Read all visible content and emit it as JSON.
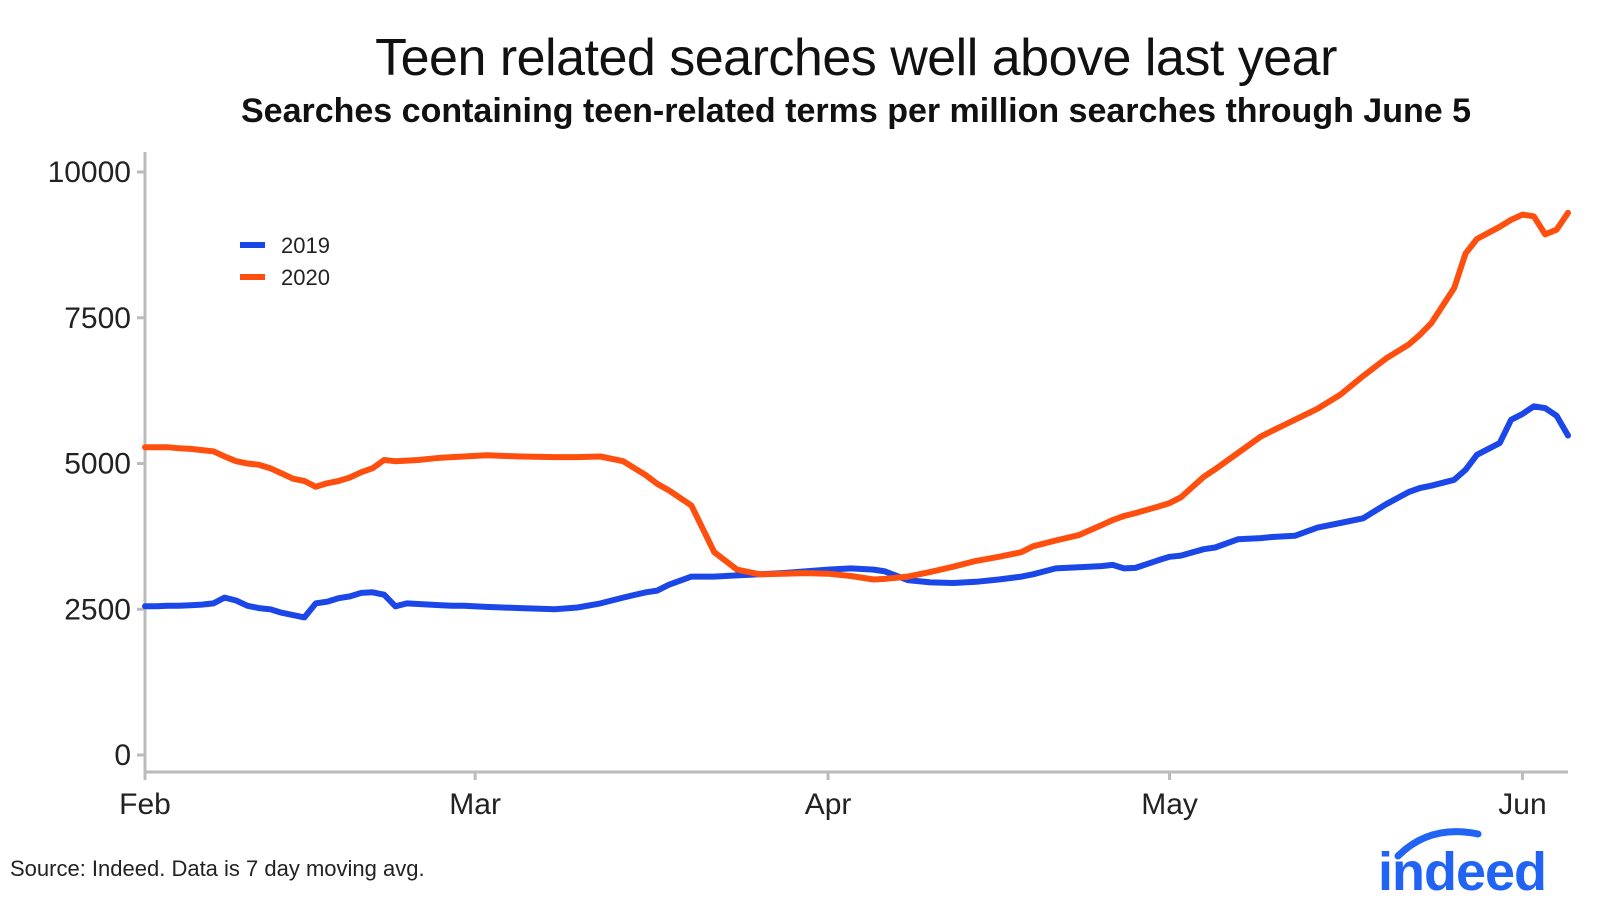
{
  "chart_data": {
    "type": "line",
    "title": "Teen related searches well above last year",
    "subtitle": "Searches containing teen-related terms per million searches through June 5",
    "xlabel": "",
    "ylabel": "",
    "x_ticks": [
      "Feb",
      "Mar",
      "Apr",
      "May",
      "Jun"
    ],
    "y_ticks": [
      "0",
      "2500",
      "5000",
      "7500",
      "10000"
    ],
    "xlim": [
      "2020-02-01",
      "2020-06-05"
    ],
    "ylim": [
      0,
      10000
    ],
    "legend_position": "top-left",
    "grid": false,
    "series": [
      {
        "name": "2019",
        "color": "#1b47e8",
        "x": [
          "2020-02-01",
          "2020-02-02",
          "2020-02-03",
          "2020-02-04",
          "2020-02-05",
          "2020-02-06",
          "2020-02-07",
          "2020-02-08",
          "2020-02-09",
          "2020-02-10",
          "2020-02-11",
          "2020-02-12",
          "2020-02-13",
          "2020-02-14",
          "2020-02-15",
          "2020-02-16",
          "2020-02-17",
          "2020-02-18",
          "2020-02-19",
          "2020-02-20",
          "2020-02-21",
          "2020-02-22",
          "2020-02-23",
          "2020-02-24",
          "2020-02-25",
          "2020-02-26",
          "2020-02-27",
          "2020-02-28",
          "2020-02-29",
          "2020-03-02",
          "2020-03-05",
          "2020-03-08",
          "2020-03-10",
          "2020-03-12",
          "2020-03-14",
          "2020-03-16",
          "2020-03-17",
          "2020-03-18",
          "2020-03-20",
          "2020-03-22",
          "2020-03-24",
          "2020-03-26",
          "2020-03-28",
          "2020-03-30",
          "2020-04-01",
          "2020-04-03",
          "2020-04-05",
          "2020-04-06",
          "2020-04-08",
          "2020-04-10",
          "2020-04-12",
          "2020-04-14",
          "2020-04-16",
          "2020-04-18",
          "2020-04-19",
          "2020-04-21",
          "2020-04-23",
          "2020-04-25",
          "2020-04-26",
          "2020-04-27",
          "2020-04-28",
          "2020-04-30",
          "2020-05-01",
          "2020-05-02",
          "2020-05-04",
          "2020-05-05",
          "2020-05-07",
          "2020-05-09",
          "2020-05-10",
          "2020-05-12",
          "2020-05-14",
          "2020-05-16",
          "2020-05-18",
          "2020-05-20",
          "2020-05-22",
          "2020-05-23",
          "2020-05-24",
          "2020-05-26",
          "2020-05-27",
          "2020-05-28",
          "2020-05-30",
          "2020-05-31",
          "2020-06-01",
          "2020-06-02",
          "2020-06-03",
          "2020-06-04",
          "2020-06-05"
        ],
        "values": [
          2550,
          2550,
          2560,
          2560,
          2570,
          2580,
          2600,
          2700,
          2650,
          2560,
          2520,
          2500,
          2440,
          2400,
          2360,
          2600,
          2630,
          2690,
          2720,
          2780,
          2790,
          2750,
          2550,
          2600,
          2590,
          2580,
          2570,
          2560,
          2560,
          2540,
          2520,
          2500,
          2530,
          2600,
          2700,
          2790,
          2820,
          2920,
          3060,
          3060,
          3080,
          3100,
          3120,
          3150,
          3180,
          3200,
          3180,
          3150,
          3000,
          2960,
          2950,
          2970,
          3010,
          3060,
          3100,
          3200,
          3220,
          3240,
          3260,
          3200,
          3210,
          3340,
          3400,
          3420,
          3530,
          3560,
          3700,
          3720,
          3740,
          3760,
          3900,
          3980,
          4060,
          4300,
          4510,
          4580,
          4620,
          4720,
          4890,
          5150,
          5350,
          5750,
          5850,
          5980,
          5950,
          5820,
          5480
        ]
      },
      {
        "name": "2020",
        "color": "#ff4f0f",
        "x": [
          "2020-02-01",
          "2020-02-02",
          "2020-02-03",
          "2020-02-04",
          "2020-02-05",
          "2020-02-06",
          "2020-02-07",
          "2020-02-08",
          "2020-02-09",
          "2020-02-10",
          "2020-02-11",
          "2020-02-12",
          "2020-02-13",
          "2020-02-14",
          "2020-02-15",
          "2020-02-16",
          "2020-02-17",
          "2020-02-18",
          "2020-02-19",
          "2020-02-20",
          "2020-02-21",
          "2020-02-22",
          "2020-02-23",
          "2020-02-24",
          "2020-02-25",
          "2020-02-26",
          "2020-02-27",
          "2020-02-28",
          "2020-02-29",
          "2020-03-02",
          "2020-03-05",
          "2020-03-08",
          "2020-03-10",
          "2020-03-12",
          "2020-03-14",
          "2020-03-16",
          "2020-03-17",
          "2020-03-18",
          "2020-03-20",
          "2020-03-22",
          "2020-03-24",
          "2020-03-26",
          "2020-03-28",
          "2020-03-30",
          "2020-04-01",
          "2020-04-03",
          "2020-04-05",
          "2020-04-06",
          "2020-04-08",
          "2020-04-10",
          "2020-04-12",
          "2020-04-14",
          "2020-04-16",
          "2020-04-18",
          "2020-04-19",
          "2020-04-21",
          "2020-04-23",
          "2020-04-25",
          "2020-04-26",
          "2020-04-27",
          "2020-04-28",
          "2020-04-30",
          "2020-05-01",
          "2020-05-02",
          "2020-05-04",
          "2020-05-05",
          "2020-05-07",
          "2020-05-09",
          "2020-05-10",
          "2020-05-12",
          "2020-05-14",
          "2020-05-16",
          "2020-05-18",
          "2020-05-20",
          "2020-05-22",
          "2020-05-23",
          "2020-05-24",
          "2020-05-26",
          "2020-05-27",
          "2020-05-28",
          "2020-05-30",
          "2020-05-31",
          "2020-06-01",
          "2020-06-02",
          "2020-06-03",
          "2020-06-04",
          "2020-06-05"
        ],
        "values": [
          5280,
          5280,
          5280,
          5260,
          5250,
          5230,
          5210,
          5120,
          5040,
          5000,
          4980,
          4920,
          4830,
          4740,
          4700,
          4600,
          4660,
          4700,
          4760,
          4850,
          4920,
          5060,
          5040,
          5050,
          5060,
          5080,
          5100,
          5110,
          5120,
          5140,
          5120,
          5110,
          5110,
          5120,
          5040,
          4800,
          4650,
          4540,
          4280,
          3480,
          3180,
          3100,
          3110,
          3120,
          3110,
          3070,
          3010,
          3020,
          3060,
          3140,
          3230,
          3330,
          3400,
          3480,
          3580,
          3680,
          3770,
          3940,
          4030,
          4100,
          4150,
          4260,
          4320,
          4420,
          4770,
          4900,
          5180,
          5460,
          5560,
          5750,
          5940,
          6180,
          6500,
          6800,
          7040,
          7210,
          7410,
          8010,
          8600,
          8850,
          9060,
          9180,
          9270,
          9240,
          8930,
          9010,
          9300
        ]
      }
    ]
  },
  "footer": {
    "source": "Source: Indeed. Data is 7 day moving avg."
  },
  "logo": {
    "text": "indeed",
    "color": "#2164f3"
  }
}
